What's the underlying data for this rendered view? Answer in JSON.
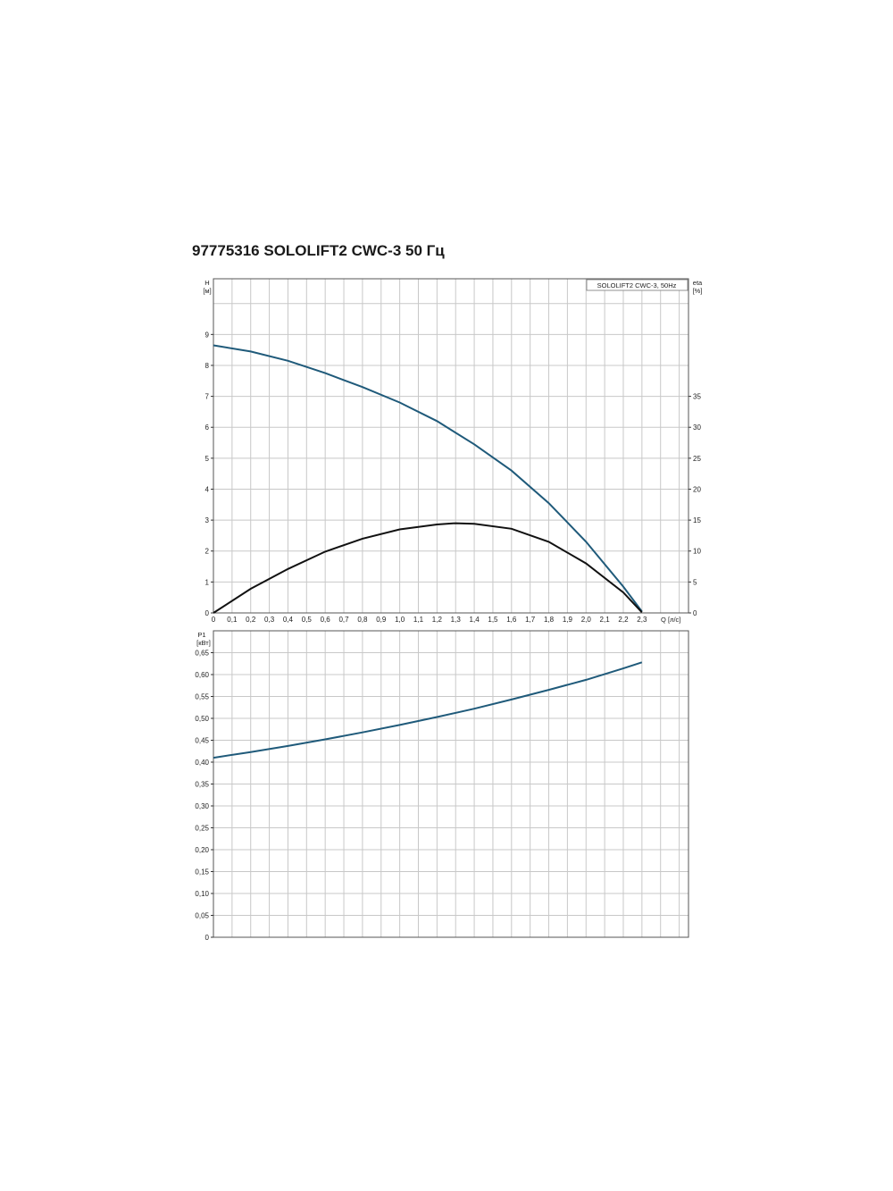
{
  "title": "97775316 SOLOLIFT2 CWC-3 50 Гц",
  "colors": {
    "head_curve": "#1f5a7a",
    "eta_curve": "#111111",
    "p1_curve": "#1f5a7a",
    "grid": "#c8c8c8",
    "frame": "#555555"
  },
  "chart_data": [
    {
      "type": "line",
      "title": "",
      "legend_label": "SOLOLIFT2 CWC-3, 50Hz",
      "legend": "top-right",
      "grid": true,
      "ylabel": "H",
      "ylabel_unit": "[м]",
      "y2label": "eta",
      "y2label_unit": "[%]",
      "xlabel": "Q",
      "xlabel_unit": "[л/с]",
      "xlim": [
        0,
        2.55
      ],
      "ylim": [
        0,
        10.8
      ],
      "y2lim": [
        0,
        54
      ],
      "x_ticks": [
        "0",
        "0,1",
        "0,2",
        "0,3",
        "0,4",
        "0,5",
        "0,6",
        "0,7",
        "0,8",
        "0,9",
        "1,0",
        "1,1",
        "1,2",
        "1,3",
        "1,4",
        "1,5",
        "1,6",
        "1,7",
        "1,8",
        "1,9",
        "2,0",
        "2,1",
        "2,2",
        "2,3"
      ],
      "y_ticks": [
        "0",
        "1",
        "2",
        "3",
        "4",
        "5",
        "6",
        "7",
        "8",
        "9"
      ],
      "y2_ticks": [
        "0",
        "5",
        "10",
        "15",
        "20",
        "25",
        "30",
        "35"
      ],
      "series": [
        {
          "name": "H",
          "axis": "left",
          "x": [
            0,
            0.2,
            0.4,
            0.6,
            0.8,
            1.0,
            1.2,
            1.4,
            1.6,
            1.8,
            2.0,
            2.2,
            2.3
          ],
          "y": [
            8.65,
            8.45,
            8.15,
            7.75,
            7.3,
            6.8,
            6.2,
            5.45,
            4.6,
            3.55,
            2.3,
            0.85,
            0.05
          ]
        },
        {
          "name": "eta",
          "axis": "right",
          "x": [
            0,
            0.2,
            0.4,
            0.6,
            0.8,
            1.0,
            1.2,
            1.3,
            1.4,
            1.6,
            1.8,
            2.0,
            2.2,
            2.3
          ],
          "y": [
            0,
            3.9,
            7.1,
            9.9,
            12.0,
            13.5,
            14.3,
            14.5,
            14.4,
            13.6,
            11.5,
            8.0,
            3.3,
            0.1
          ]
        }
      ]
    },
    {
      "type": "line",
      "title": "",
      "grid": true,
      "ylabel": "P1",
      "ylabel_unit": "[кВт]",
      "xlim": [
        0,
        2.55
      ],
      "ylim": [
        0,
        0.7
      ],
      "y_ticks": [
        "0",
        "0,05",
        "0,10",
        "0,15",
        "0,20",
        "0,25",
        "0,30",
        "0,35",
        "0,40",
        "0,45",
        "0,50",
        "0,55",
        "0,60",
        "0,65"
      ],
      "series": [
        {
          "name": "P1",
          "x": [
            0,
            0.2,
            0.4,
            0.6,
            0.8,
            1.0,
            1.2,
            1.4,
            1.6,
            1.8,
            2.0,
            2.2,
            2.3
          ],
          "y": [
            0.41,
            0.423,
            0.437,
            0.452,
            0.468,
            0.485,
            0.503,
            0.522,
            0.543,
            0.565,
            0.588,
            0.614,
            0.628
          ]
        }
      ]
    }
  ]
}
